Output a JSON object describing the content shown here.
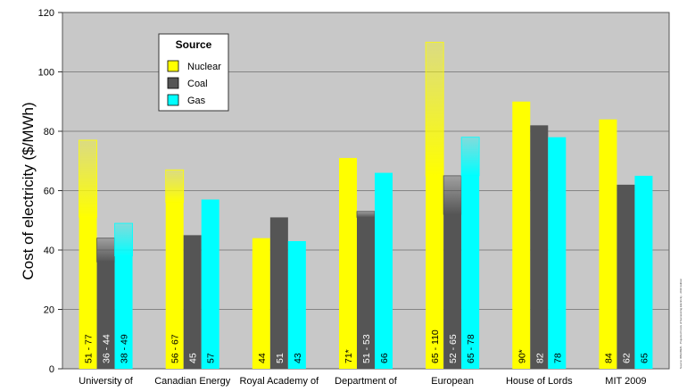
{
  "chart_data": {
    "type": "bar",
    "title": "",
    "xlabel": "",
    "ylabel": "Cost of electricity ($/MWh)",
    "ylim": [
      0,
      120
    ],
    "yticks": [
      0,
      20,
      40,
      60,
      80,
      100,
      120
    ],
    "grid": true,
    "legend": {
      "title": "Source",
      "placement": "top-left",
      "entries": [
        "Nuclear",
        "Coal",
        "Gas"
      ]
    },
    "source_note": "Source: WNA/BEN - Projected Costs of Generating Electricity - 2010 Edition",
    "categories": [
      "University of",
      "Canadian Energy",
      "Royal Academy of",
      "Department of",
      "European",
      "House of Lords",
      "MIT 2009"
    ],
    "colors": {
      "Nuclear": "#ffff00",
      "Coal": "#555555",
      "Gas": "#00ffff",
      "plot_bg": "#c8c8c8"
    },
    "series": [
      {
        "name": "Nuclear",
        "low": [
          51,
          56,
          44,
          71,
          65,
          90,
          84
        ],
        "high": [
          77,
          67,
          44,
          71,
          110,
          90,
          84
        ],
        "labels": [
          "51 - 77",
          "56 - 67",
          "44",
          "71*",
          "65 - 110",
          "90*",
          "84"
        ]
      },
      {
        "name": "Coal",
        "low": [
          36,
          45,
          51,
          51,
          52,
          82,
          62
        ],
        "high": [
          44,
          45,
          51,
          53,
          65,
          82,
          62
        ],
        "labels": [
          "36 - 44",
          "45",
          "51",
          "51 - 53",
          "52 - 65",
          "82",
          "62"
        ]
      },
      {
        "name": "Gas",
        "low": [
          38,
          57,
          43,
          66,
          65,
          78,
          65
        ],
        "high": [
          49,
          57,
          43,
          66,
          78,
          78,
          65
        ],
        "labels": [
          "38 - 49",
          "57",
          "43",
          "66",
          "65 - 78",
          "78",
          "65"
        ]
      }
    ]
  }
}
